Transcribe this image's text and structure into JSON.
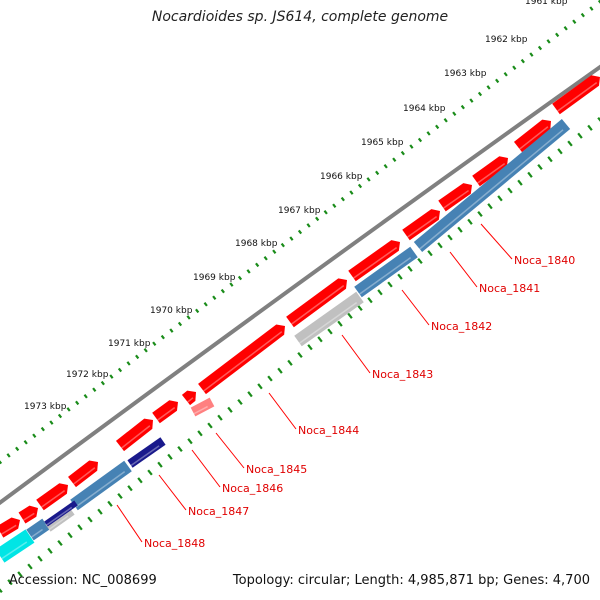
{
  "title": "Nocardioides sp. JS614, complete genome",
  "accession_text": "Accession: NC_008699",
  "summary_text": "Topology: circular; Length: 4,985,871 bp; Genes: 4,700",
  "kbp_ticks": [
    "1961 kbp",
    "1962 kbp",
    "1963 kbp",
    "1964 kbp",
    "1965 kbp",
    "1966 kbp",
    "1967 kbp",
    "1968 kbp",
    "1969 kbp",
    "1970 kbp",
    "1971 kbp",
    "1972 kbp",
    "1973 kbp"
  ],
  "gene_labels": [
    "Noca_1840",
    "Noca_1841",
    "Noca_1842",
    "Noca_1843",
    "Noca_1844",
    "Noca_1845",
    "Noca_1846",
    "Noca_1847",
    "Noca_1848"
  ],
  "colors": {
    "backbone": "#808080",
    "forward_gene": "#ff0000",
    "reverse_gene": "#4682b4",
    "pseudo_gene": "#c0c0c0",
    "dark_gene": "#1a1a8c",
    "cyan_gene": "#00e5e5",
    "tick_dots": "#1a8c1a",
    "label_text": "#e00000"
  }
}
